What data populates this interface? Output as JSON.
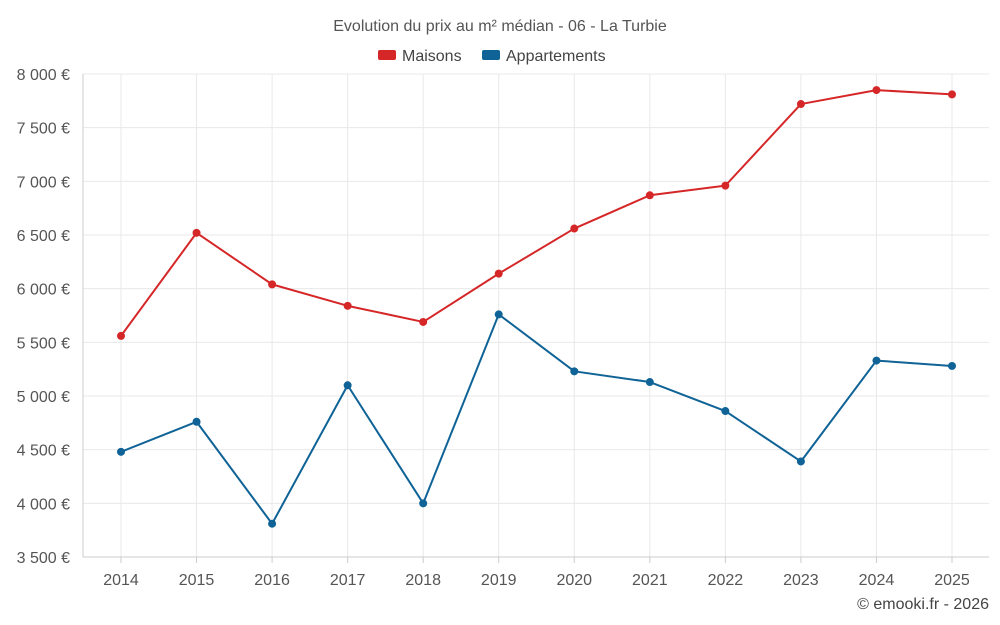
{
  "chart_data": {
    "type": "line",
    "title": "Evolution du prix au m² médian - 06 - La Turbie",
    "xlabel": "",
    "ylabel": "",
    "categories": [
      "2014",
      "2015",
      "2016",
      "2017",
      "2018",
      "2019",
      "2020",
      "2021",
      "2022",
      "2023",
      "2024",
      "2025"
    ],
    "ylim": [
      3500,
      8000
    ],
    "y_ticks": [
      3500,
      4000,
      4500,
      5000,
      5500,
      6000,
      6500,
      7000,
      7500,
      8000
    ],
    "y_tick_labels": [
      "3 500 €",
      "4 000 €",
      "4 500 €",
      "5 000 €",
      "5 500 €",
      "6 000 €",
      "6 500 €",
      "7 000 €",
      "7 500 €",
      "8 000 €"
    ],
    "grid": true,
    "legend_position": "top-center",
    "series": [
      {
        "name": "Maisons",
        "color": "#d62728",
        "values": [
          5560,
          6520,
          6040,
          5840,
          5690,
          6140,
          6560,
          6870,
          6960,
          7720,
          7850,
          7810
        ]
      },
      {
        "name": "Appartements",
        "color": "#0f6396",
        "values": [
          4480,
          4760,
          3810,
          5100,
          4000,
          5760,
          5230,
          5130,
          4860,
          4390,
          5330,
          5280
        ]
      }
    ]
  },
  "credit": "© emooki.fr - 2026"
}
